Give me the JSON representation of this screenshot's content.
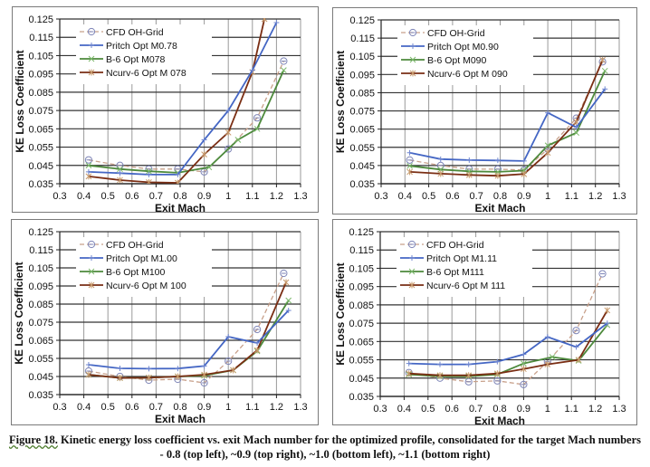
{
  "caption": {
    "figure_label": "Figure 18.",
    "line1": " Kinetic energy loss coefficient vs. exit Mach number for the optimized profile, consolidated for the target Mach numbers",
    "line2": "- 0.8 (top left), ~0.9 (top right), ~1.0 (bottom left), ~1.1 (bottom right)"
  },
  "colors": {
    "cfd": "#c8a08a",
    "cfd_marker": "#7f86b8",
    "pritch": "#4466c4",
    "b6": "#4d8a3c",
    "ncurv": "#7a2e14"
  },
  "chart_data": [
    {
      "type": "line",
      "position": "top-left",
      "xlabel": "Exit Mach",
      "ylabel": "KE Loss Coefficient",
      "xlim": [
        0.3,
        1.3
      ],
      "ylim": [
        0.035,
        0.125
      ],
      "xticks": [
        "0.3",
        "0.4",
        "0.5",
        "0.6",
        "0.7",
        "0.8",
        "0.9",
        "1",
        "1.1",
        "1.2",
        "1.3"
      ],
      "yticks": [
        "0.035",
        "0.045",
        "0.055",
        "0.065",
        "0.075",
        "0.085",
        "0.095",
        "0.105",
        "0.115",
        "0.125"
      ],
      "grid": true,
      "legend": "top-left",
      "series": [
        {
          "name": "CFD OH-Grid",
          "key": "cfd",
          "x": [
            0.42,
            0.55,
            0.67,
            0.79,
            0.9,
            1.0,
            1.12,
            1.23
          ],
          "y": [
            0.048,
            0.045,
            0.043,
            0.043,
            0.0415,
            0.054,
            0.071,
            0.102
          ]
        },
        {
          "name": "Pritch Opt M0.78",
          "key": "pritch",
          "x": [
            0.42,
            0.55,
            0.67,
            0.79,
            0.9,
            1.0,
            1.1,
            1.2
          ],
          "y": [
            0.0415,
            0.0408,
            0.04,
            0.04,
            0.059,
            0.075,
            0.097,
            0.123
          ]
        },
        {
          "name": "B-6 Opt M078",
          "key": "b6",
          "x": [
            0.42,
            0.55,
            0.67,
            0.79,
            0.92,
            1.04,
            1.12,
            1.23
          ],
          "y": [
            0.045,
            0.043,
            0.0418,
            0.041,
            0.044,
            0.059,
            0.065,
            0.097
          ]
        },
        {
          "name": "Ncurv-6 Opt M 078",
          "key": "ncurv",
          "x": [
            0.42,
            0.55,
            0.67,
            0.79,
            0.9,
            1.0,
            1.1,
            1.15
          ],
          "y": [
            0.039,
            0.037,
            0.0358,
            0.0355,
            0.051,
            0.063,
            0.096,
            0.125
          ]
        }
      ]
    },
    {
      "type": "line",
      "position": "top-right",
      "xlabel": "Exit Mach",
      "ylabel": "KE Loss Coefficient",
      "xlim": [
        0.3,
        1.3
      ],
      "ylim": [
        0.035,
        0.125
      ],
      "xticks": [
        "0.3",
        "0.4",
        "0.5",
        "0.6",
        "0.7",
        "0.8",
        "0.9",
        "1",
        "1.1",
        "1.2",
        "1.3"
      ],
      "yticks": [
        "0.035",
        "0.045",
        "0.055",
        "0.065",
        "0.075",
        "0.085",
        "0.095",
        "0.105",
        "0.115",
        "0.125"
      ],
      "grid": true,
      "legend": "top-left",
      "series": [
        {
          "name": "CFD OH-Grid",
          "key": "cfd",
          "x": [
            0.42,
            0.55,
            0.67,
            0.79,
            0.9,
            1.0,
            1.12,
            1.23
          ],
          "y": [
            0.048,
            0.045,
            0.043,
            0.043,
            0.0425,
            0.054,
            0.071,
            0.102
          ]
        },
        {
          "name": "Pritch Opt M0.90",
          "key": "pritch",
          "x": [
            0.42,
            0.55,
            0.67,
            0.79,
            0.9,
            1.0,
            1.12,
            1.24
          ],
          "y": [
            0.052,
            0.0485,
            0.048,
            0.0478,
            0.0475,
            0.074,
            0.066,
            0.087
          ]
        },
        {
          "name": "B-6 Opt M090",
          "key": "b6",
          "x": [
            0.42,
            0.55,
            0.67,
            0.79,
            0.9,
            1.0,
            1.12,
            1.24
          ],
          "y": [
            0.0448,
            0.0428,
            0.0418,
            0.0415,
            0.0422,
            0.056,
            0.063,
            0.097
          ]
        },
        {
          "name": "Ncurv-6 Opt M 090",
          "key": "ncurv",
          "x": [
            0.42,
            0.55,
            0.67,
            0.79,
            0.9,
            1.0,
            1.12,
            1.23
          ],
          "y": [
            0.0415,
            0.0405,
            0.0398,
            0.0394,
            0.0403,
            0.052,
            0.069,
            0.103
          ]
        }
      ]
    },
    {
      "type": "line",
      "position": "bottom-left",
      "xlabel": "Exit Mach",
      "ylabel": "KE Loss Coefficient",
      "xlim": [
        0.3,
        1.3
      ],
      "ylim": [
        0.035,
        0.125
      ],
      "xticks": [
        "0.3",
        "0.4",
        "0.5",
        "0.6",
        "0.7",
        "0.8",
        "0.9",
        "1",
        "1.1",
        "1.2",
        "1.3"
      ],
      "yticks": [
        "0.035",
        "0.045",
        "0.055",
        "0.065",
        "0.075",
        "0.085",
        "0.095",
        "0.105",
        "0.115",
        "0.125"
      ],
      "grid": true,
      "legend": "top-left",
      "series": [
        {
          "name": "CFD OH-Grid",
          "key": "cfd",
          "x": [
            0.42,
            0.55,
            0.67,
            0.79,
            0.9,
            1.0,
            1.12,
            1.23
          ],
          "y": [
            0.048,
            0.045,
            0.043,
            0.0435,
            0.0415,
            0.0535,
            0.071,
            0.102
          ]
        },
        {
          "name": "Pritch Opt M1.00",
          "key": "pritch",
          "x": [
            0.42,
            0.55,
            0.67,
            0.79,
            0.9,
            1.0,
            1.12,
            1.25
          ],
          "y": [
            0.0515,
            0.0495,
            0.0493,
            0.0494,
            0.0508,
            0.067,
            0.0635,
            0.0815
          ]
        },
        {
          "name": "B-6 Opt M100",
          "key": "b6",
          "x": [
            0.42,
            0.55,
            0.67,
            0.79,
            0.9,
            1.02,
            1.12,
            1.25
          ],
          "y": [
            0.046,
            0.0442,
            0.0443,
            0.045,
            0.0455,
            0.0485,
            0.059,
            0.087
          ]
        },
        {
          "name": "Ncurv-6 Opt M 100",
          "key": "ncurv",
          "x": [
            0.42,
            0.55,
            0.67,
            0.79,
            0.9,
            1.02,
            1.12,
            1.24
          ],
          "y": [
            0.046,
            0.0442,
            0.0443,
            0.045,
            0.046,
            0.0485,
            0.0595,
            0.097
          ]
        }
      ]
    },
    {
      "type": "line",
      "position": "bottom-right",
      "xlabel": "Exit Mach",
      "ylabel": "KE Loss Coefficient",
      "xlim": [
        0.3,
        1.3
      ],
      "ylim": [
        0.035,
        0.125
      ],
      "xticks": [
        "0.3",
        "0.4",
        "0.5",
        "0.6",
        "0.7",
        "0.8",
        "0.9",
        "1",
        "1.1",
        "1.2",
        "1.3"
      ],
      "yticks": [
        "0.035",
        "0.045",
        "0.055",
        "0.065",
        "0.075",
        "0.085",
        "0.095",
        "0.105",
        "0.115",
        "0.125"
      ],
      "grid": true,
      "legend": "top-left",
      "series": [
        {
          "name": "CFD OH-Grid",
          "key": "cfd",
          "x": [
            0.42,
            0.55,
            0.67,
            0.79,
            0.9,
            1.0,
            1.12,
            1.23
          ],
          "y": [
            0.048,
            0.045,
            0.043,
            0.0435,
            0.0415,
            0.054,
            0.071,
            0.102
          ]
        },
        {
          "name": "Pritch Opt M1.11",
          "key": "pritch",
          "x": [
            0.42,
            0.55,
            0.67,
            0.79,
            0.9,
            1.0,
            1.12,
            1.25
          ],
          "y": [
            0.053,
            0.0525,
            0.0525,
            0.054,
            0.058,
            0.0675,
            0.062,
            0.075
          ]
        },
        {
          "name": "B-6 Opt M111",
          "key": "b6",
          "x": [
            0.42,
            0.55,
            0.67,
            0.79,
            0.9,
            1.02,
            1.13,
            1.25
          ],
          "y": [
            0.047,
            0.046,
            0.046,
            0.047,
            0.053,
            0.0565,
            0.0545,
            0.074
          ]
        },
        {
          "name": "Ncurv-6 Opt M 111",
          "key": "ncurv",
          "x": [
            0.42,
            0.55,
            0.67,
            0.79,
            0.9,
            1.0,
            1.13,
            1.25
          ],
          "y": [
            0.0475,
            0.0465,
            0.0465,
            0.0475,
            0.05,
            0.0525,
            0.055,
            0.082
          ]
        }
      ]
    }
  ]
}
